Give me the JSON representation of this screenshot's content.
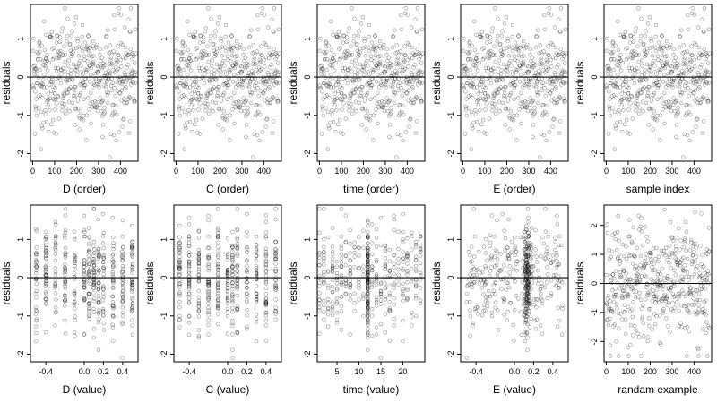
{
  "chart_data": [
    {
      "type": "scatter",
      "xlabel": "D (order)",
      "ylabel": "residuals",
      "xlim": [
        -10,
        480
      ],
      "ylim": [
        -2.2,
        1.9
      ],
      "xticks": [
        0,
        100,
        200,
        300,
        400
      ],
      "yticks": [
        -2,
        -1,
        0,
        1
      ],
      "hline": 0,
      "n": 470,
      "x_distribution": "index 1..470",
      "y_distribution": "residuals roughly between -2.1 and 1.8"
    },
    {
      "type": "scatter",
      "xlabel": "C (order)",
      "ylabel": "residuals",
      "xlim": [
        -10,
        480
      ],
      "ylim": [
        -2.2,
        1.9
      ],
      "xticks": [
        0,
        100,
        200,
        300,
        400
      ],
      "yticks": [
        -2,
        -1,
        0,
        1
      ],
      "hline": 0,
      "n": 470,
      "x_distribution": "index 1..470",
      "y_distribution": "residuals roughly between -2.1 and 1.8"
    },
    {
      "type": "scatter",
      "xlabel": "time (order)",
      "ylabel": "residuals",
      "xlim": [
        -10,
        480
      ],
      "ylim": [
        -2.2,
        1.9
      ],
      "xticks": [
        0,
        100,
        200,
        300,
        400
      ],
      "yticks": [
        -2,
        -1,
        0,
        1
      ],
      "hline": 0,
      "n": 470,
      "x_distribution": "index 1..470",
      "y_distribution": "residuals roughly between -2.1 and 1.8"
    },
    {
      "type": "scatter",
      "xlabel": "E (order)",
      "ylabel": "residuals",
      "xlim": [
        -10,
        480
      ],
      "ylim": [
        -2.2,
        1.9
      ],
      "xticks": [
        0,
        100,
        200,
        300,
        400
      ],
      "yticks": [
        -2,
        -1,
        0,
        1
      ],
      "hline": 0,
      "n": 470,
      "x_distribution": "index 1..470",
      "y_distribution": "residuals roughly between -2.1 and 1.8"
    },
    {
      "type": "scatter",
      "xlabel": "sample index",
      "ylabel": "residuals",
      "xlim": [
        -10,
        480
      ],
      "ylim": [
        -2.2,
        1.9
      ],
      "xticks": [
        0,
        100,
        200,
        300,
        400
      ],
      "yticks": [
        -2,
        -1,
        0,
        1
      ],
      "hline": 0,
      "n": 470,
      "x_distribution": "index 1..470",
      "y_distribution": "residuals roughly between -2.1 and 1.8"
    },
    {
      "type": "scatter",
      "xlabel": "D (value)",
      "ylabel": "residuals",
      "xlim": [
        -0.56,
        0.56
      ],
      "ylim": [
        -2.2,
        1.9
      ],
      "xticks": [
        -0.4,
        0,
        0.2,
        0.4
      ],
      "xticklabels": [
        "-0.4",
        "0.0",
        "0.2",
        "0.4"
      ],
      "yticks": [
        -2,
        -1,
        0,
        1
      ],
      "hline": 0,
      "n": 470,
      "x_distribution": "discrete columns between -0.5 and 0.5",
      "y_distribution": "residuals roughly between -2.1 and 1.8"
    },
    {
      "type": "scatter",
      "xlabel": "C (value)",
      "ylabel": "residuals",
      "xlim": [
        -0.56,
        0.56
      ],
      "ylim": [
        -2.2,
        1.9
      ],
      "xticks": [
        -0.4,
        0,
        0.2,
        0.4
      ],
      "xticklabels": [
        "-0.4",
        "0.0",
        "0.2",
        "0.4"
      ],
      "yticks": [
        -2,
        -1,
        0,
        1
      ],
      "hline": 0,
      "n": 470,
      "x_distribution": "discrete columns between -0.5 and 0.5",
      "y_distribution": "residuals roughly between -2.1 and 1.8"
    },
    {
      "type": "scatter",
      "xlabel": "time (value)",
      "ylabel": "residuals",
      "xlim": [
        0.5,
        25
      ],
      "ylim": [
        -2.2,
        1.9
      ],
      "xticks": [
        5,
        10,
        15,
        20
      ],
      "yticks": [
        -2,
        -1,
        0,
        1
      ],
      "hline": 0,
      "n": 470,
      "x_distribution": "discrete values 1..24, heavier near 12",
      "y_distribution": "residuals roughly between -2.1 and 1.8"
    },
    {
      "type": "scatter",
      "xlabel": "E (value)",
      "ylabel": "residuals",
      "xlim": [
        -0.56,
        0.56
      ],
      "ylim": [
        -2.2,
        1.9
      ],
      "xticks": [
        -0.4,
        0,
        0.2,
        0.4
      ],
      "xticklabels": [
        "-0.4",
        "0.0",
        "0.2",
        "0.4"
      ],
      "yticks": [
        -2,
        -1,
        0,
        1
      ],
      "hline": 0,
      "n": 470,
      "x_distribution": "continuous, dense cluster near 0.13",
      "y_distribution": "residuals roughly between -2.1 and 1.8"
    },
    {
      "type": "scatter",
      "xlabel": "randam example",
      "ylabel": "residuals",
      "xlim": [
        -10,
        480
      ],
      "ylim": [
        -2.7,
        2.7
      ],
      "xticks": [
        0,
        100,
        200,
        300,
        400
      ],
      "yticks": [
        -2,
        -1,
        0,
        1,
        2
      ],
      "hline": 0,
      "n": 470,
      "x_distribution": "index 1..470",
      "y_distribution": "random values roughly between -2.5 and 2.5"
    }
  ]
}
